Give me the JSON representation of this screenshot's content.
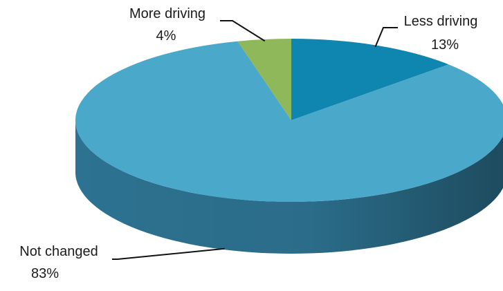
{
  "chart_data": {
    "type": "pie",
    "style": "3d",
    "start_angle_deg": 0,
    "direction": "clockwise",
    "slices": [
      {
        "name": "Less driving",
        "value": 13,
        "label": "13%",
        "color": "#0f86b0",
        "side_color": "#0b5f7e"
      },
      {
        "name": "Not changed",
        "value": 83,
        "label": "83%",
        "color": "#4aa8cb",
        "side_color": "#2f7898"
      },
      {
        "name": "More driving",
        "value": 4,
        "label": "4%",
        "color": "#8fb85a",
        "side_color": "#5f8a35"
      }
    ],
    "legend": "none"
  }
}
